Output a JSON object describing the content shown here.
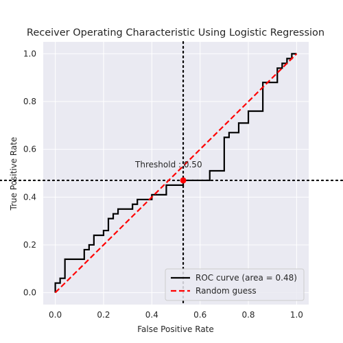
{
  "chart_data": {
    "type": "line",
    "title": "Receiver Operating Characteristic Using Logistic Regression",
    "xlabel": "False Positive Rate",
    "ylabel": "True Positive Rate",
    "xlim": [
      -0.05,
      1.05
    ],
    "ylim": [
      -0.05,
      1.05
    ],
    "xticks": [
      0.0,
      0.2,
      0.4,
      0.6,
      0.8,
      1.0
    ],
    "yticks": [
      0.0,
      0.2,
      0.4,
      0.6,
      0.8,
      1.0
    ],
    "xtick_labels": [
      "0.0",
      "0.2",
      "0.4",
      "0.6",
      "0.8",
      "1.0"
    ],
    "ytick_labels": [
      "0.0",
      "0.2",
      "0.4",
      "0.6",
      "0.8",
      "1.0"
    ],
    "grid": true,
    "legend_position": "lower-right",
    "series": [
      {
        "name": "ROC curve (area = 0.48)",
        "style": "solid",
        "color": "#000000",
        "x": [
          0.0,
          0.0,
          0.02,
          0.02,
          0.04,
          0.04,
          0.12,
          0.12,
          0.14,
          0.14,
          0.16,
          0.16,
          0.2,
          0.2,
          0.22,
          0.22,
          0.24,
          0.24,
          0.26,
          0.26,
          0.32,
          0.32,
          0.34,
          0.34,
          0.4,
          0.4,
          0.46,
          0.46,
          0.53,
          0.53,
          0.64,
          0.64,
          0.7,
          0.7,
          0.72,
          0.72,
          0.76,
          0.76,
          0.8,
          0.8,
          0.86,
          0.86,
          0.92,
          0.92,
          0.94,
          0.94,
          0.96,
          0.96,
          0.98,
          0.98,
          1.0
        ],
        "y": [
          0.0,
          0.04,
          0.04,
          0.06,
          0.06,
          0.14,
          0.14,
          0.18,
          0.18,
          0.2,
          0.2,
          0.24,
          0.24,
          0.26,
          0.26,
          0.31,
          0.31,
          0.33,
          0.33,
          0.35,
          0.35,
          0.37,
          0.37,
          0.39,
          0.39,
          0.41,
          0.41,
          0.45,
          0.45,
          0.47,
          0.47,
          0.51,
          0.51,
          0.65,
          0.65,
          0.67,
          0.67,
          0.71,
          0.71,
          0.76,
          0.76,
          0.88,
          0.88,
          0.94,
          0.94,
          0.96,
          0.96,
          0.98,
          0.98,
          1.0,
          1.0
        ]
      },
      {
        "name": "Random guess",
        "style": "dashed",
        "color": "#ff0000",
        "x": [
          0.0,
          1.0
        ],
        "y": [
          0.0,
          1.0
        ]
      }
    ],
    "threshold": {
      "label": "Threshold : 0.50",
      "x": 0.53,
      "y": 0.47,
      "marker_color": "#ff0000"
    }
  }
}
